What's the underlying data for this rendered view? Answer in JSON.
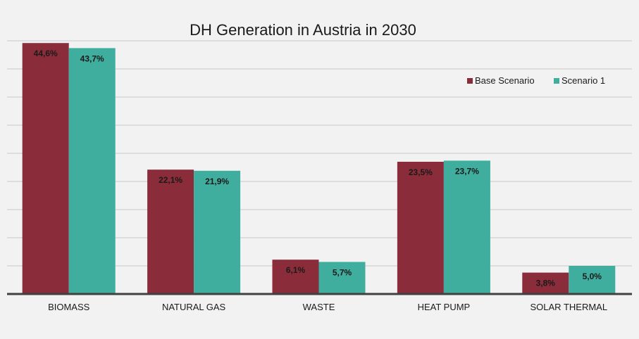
{
  "chart_data": {
    "type": "bar",
    "title": "DH Generation in Austria in 2030",
    "categories": [
      "BIOMASS",
      "NATURAL GAS",
      "WASTE",
      "HEAT PUMP",
      "SOLAR THERMAL"
    ],
    "series": [
      {
        "name": "Base Scenario",
        "color": "#8b2c3a",
        "values": [
          44.6,
          22.1,
          6.1,
          23.5,
          3.8
        ],
        "labels": [
          "44,6%",
          "22,1%",
          "6,1%",
          "23,5%",
          "3,8%"
        ]
      },
      {
        "name": "Scenario 1",
        "color": "#3fae9e",
        "values": [
          43.7,
          21.9,
          5.7,
          23.7,
          5.0
        ],
        "labels": [
          "43,7%",
          "21,9%",
          "5,7%",
          "23,7%",
          "5,0%"
        ]
      }
    ],
    "ylim": [
      0,
      45
    ],
    "grid_step": 5,
    "grid": true,
    "legend_position": "top-right",
    "xlabel": "",
    "ylabel": ""
  }
}
